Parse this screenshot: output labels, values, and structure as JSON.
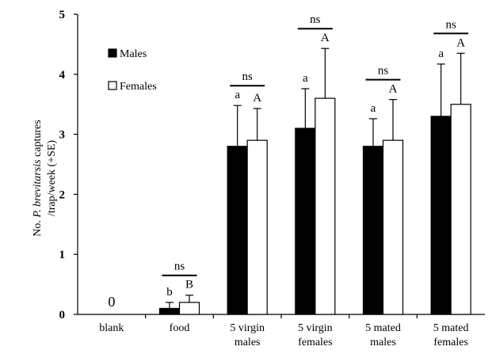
{
  "chart_data": {
    "type": "bar",
    "ylabel_prefix": "No. ",
    "ylabel_italic": "P. brevitarsis",
    "ylabel_suffix": " captures",
    "ylabel_line2": "/trap/week (+SE)",
    "ylim": [
      0,
      5
    ],
    "yticks": [
      "0",
      "1",
      "2",
      "3",
      "4",
      "5"
    ],
    "categories": [
      [
        "blank"
      ],
      [
        "food"
      ],
      [
        "5 virgin",
        "males"
      ],
      [
        "5 virgin",
        "females"
      ],
      [
        "5 mated",
        "males"
      ],
      [
        "5 mated",
        "females"
      ]
    ],
    "series": [
      {
        "name": "Males",
        "color": "#000000",
        "values": [
          0,
          0.1,
          2.8,
          3.1,
          2.8,
          3.3
        ],
        "se": [
          0,
          0.1,
          0.68,
          0.66,
          0.46,
          0.87
        ],
        "letters": [
          "",
          "b",
          "a",
          "a",
          "a",
          "a"
        ]
      },
      {
        "name": "Females",
        "color": "#ffffff",
        "values": [
          0,
          0.2,
          2.9,
          3.6,
          2.9,
          3.5
        ],
        "se": [
          0,
          0.12,
          0.53,
          0.83,
          0.68,
          0.85
        ],
        "letters": [
          "",
          "B",
          "A",
          "A",
          "A",
          "A"
        ]
      }
    ],
    "zero_label": "0",
    "ns_label": "ns",
    "ns_flags": [
      false,
      true,
      true,
      true,
      true,
      true
    ],
    "legend_position": "top-left",
    "grid": false
  }
}
